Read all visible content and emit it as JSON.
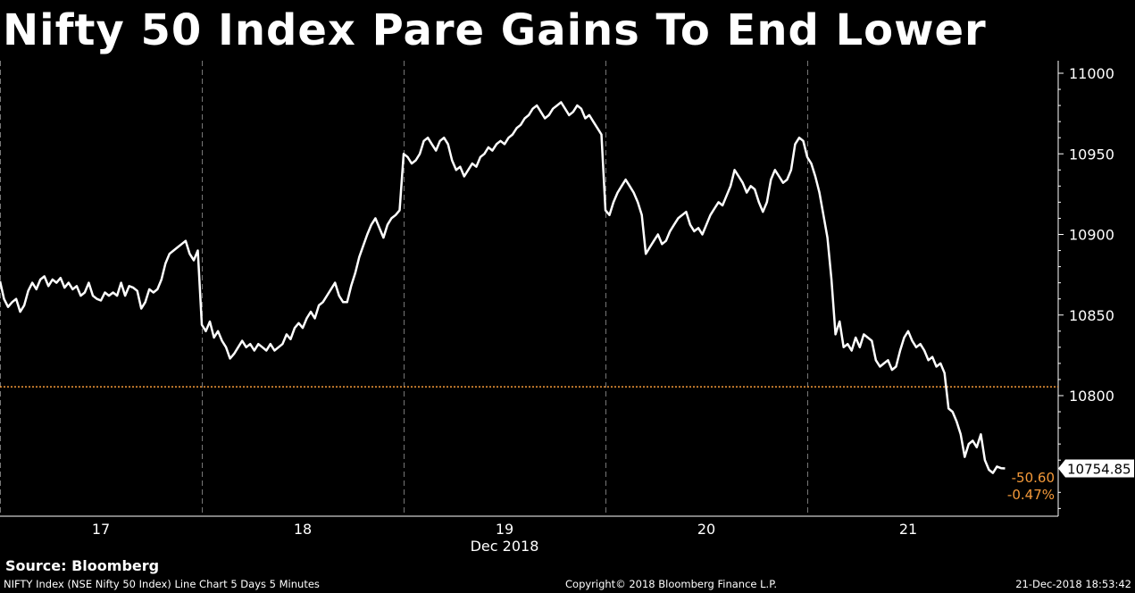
{
  "title": "Nifty 50 Index Pare Gains To End Lower",
  "source": "Source: Bloomberg",
  "footer": {
    "left": "NIFTY Index (NSE Nifty 50 Index) Line Chart 5 Days 5 Minutes",
    "center": "Copyright© 2018 Bloomberg Finance L.P.",
    "right": "21-Dec-2018 18:53:42"
  },
  "colors": {
    "background": "#000000",
    "line": "#ffffff",
    "reference_line": "#f59a3a",
    "change_text": "#f59a3a",
    "day_separator": "#777777"
  },
  "chart_data": {
    "type": "line",
    "series": [
      {
        "name": "NIFTY Index",
        "values_by_day": "see points"
      }
    ],
    "x_axis": {
      "type": "day-index",
      "tick_labels": [
        "17",
        "18",
        "19",
        "20",
        "21"
      ],
      "month_label": "Dec 2018",
      "xlim": [
        0,
        5.2
      ]
    },
    "y_axis": {
      "ylim": [
        10720,
        11005
      ],
      "ticks": [
        10800,
        10850,
        10900,
        10950,
        11000
      ],
      "position": "right"
    },
    "reference_line": {
      "value": 10805.45,
      "style": "dotted"
    },
    "last_value_label": "10754.85",
    "change_labels": {
      "absolute": "-50.60",
      "percent": "-0.47%"
    },
    "points": [
      [
        0.0,
        10871
      ],
      [
        0.02,
        10860
      ],
      [
        0.04,
        10855
      ],
      [
        0.06,
        10858
      ],
      [
        0.08,
        10860
      ],
      [
        0.1,
        10852
      ],
      [
        0.12,
        10856
      ],
      [
        0.14,
        10865
      ],
      [
        0.16,
        10870
      ],
      [
        0.18,
        10866
      ],
      [
        0.2,
        10872
      ],
      [
        0.22,
        10874
      ],
      [
        0.24,
        10868
      ],
      [
        0.26,
        10872
      ],
      [
        0.28,
        10870
      ],
      [
        0.3,
        10873
      ],
      [
        0.32,
        10867
      ],
      [
        0.34,
        10870
      ],
      [
        0.36,
        10866
      ],
      [
        0.38,
        10868
      ],
      [
        0.4,
        10862
      ],
      [
        0.42,
        10864
      ],
      [
        0.44,
        10870
      ],
      [
        0.46,
        10862
      ],
      [
        0.48,
        10860
      ],
      [
        0.5,
        10859
      ],
      [
        0.52,
        10864
      ],
      [
        0.54,
        10862
      ],
      [
        0.56,
        10864
      ],
      [
        0.58,
        10862
      ],
      [
        0.6,
        10870
      ],
      [
        0.62,
        10862
      ],
      [
        0.64,
        10868
      ],
      [
        0.66,
        10867
      ],
      [
        0.68,
        10865
      ],
      [
        0.7,
        10854
      ],
      [
        0.72,
        10858
      ],
      [
        0.74,
        10866
      ],
      [
        0.76,
        10864
      ],
      [
        0.78,
        10866
      ],
      [
        0.8,
        10872
      ],
      [
        0.82,
        10882
      ],
      [
        0.84,
        10888
      ],
      [
        0.86,
        10890
      ],
      [
        0.88,
        10892
      ],
      [
        0.9,
        10894
      ],
      [
        0.92,
        10896
      ],
      [
        0.94,
        10888
      ],
      [
        0.96,
        10884
      ],
      [
        0.98,
        10890
      ],
      [
        1.0,
        10844
      ],
      [
        1.02,
        10840
      ],
      [
        1.04,
        10846
      ],
      [
        1.06,
        10836
      ],
      [
        1.08,
        10840
      ],
      [
        1.1,
        10834
      ],
      [
        1.12,
        10830
      ],
      [
        1.14,
        10823
      ],
      [
        1.16,
        10826
      ],
      [
        1.18,
        10830
      ],
      [
        1.2,
        10834
      ],
      [
        1.22,
        10830
      ],
      [
        1.24,
        10832
      ],
      [
        1.26,
        10828
      ],
      [
        1.28,
        10832
      ],
      [
        1.3,
        10830
      ],
      [
        1.32,
        10828
      ],
      [
        1.34,
        10832
      ],
      [
        1.36,
        10828
      ],
      [
        1.38,
        10830
      ],
      [
        1.4,
        10832
      ],
      [
        1.42,
        10838
      ],
      [
        1.44,
        10835
      ],
      [
        1.46,
        10842
      ],
      [
        1.48,
        10845
      ],
      [
        1.5,
        10842
      ],
      [
        1.52,
        10848
      ],
      [
        1.54,
        10852
      ],
      [
        1.56,
        10848
      ],
      [
        1.58,
        10856
      ],
      [
        1.6,
        10858
      ],
      [
        1.62,
        10862
      ],
      [
        1.64,
        10866
      ],
      [
        1.66,
        10870
      ],
      [
        1.68,
        10862
      ],
      [
        1.7,
        10858
      ],
      [
        1.72,
        10858
      ],
      [
        1.74,
        10868
      ],
      [
        1.76,
        10876
      ],
      [
        1.78,
        10886
      ],
      [
        1.8,
        10893
      ],
      [
        1.82,
        10900
      ],
      [
        1.84,
        10906
      ],
      [
        1.86,
        10910
      ],
      [
        1.88,
        10904
      ],
      [
        1.9,
        10898
      ],
      [
        1.92,
        10906
      ],
      [
        1.94,
        10910
      ],
      [
        1.96,
        10912
      ],
      [
        1.98,
        10915
      ],
      [
        2.0,
        10950
      ],
      [
        2.02,
        10948
      ],
      [
        2.04,
        10944
      ],
      [
        2.06,
        10946
      ],
      [
        2.08,
        10950
      ],
      [
        2.1,
        10958
      ],
      [
        2.12,
        10960
      ],
      [
        2.14,
        10956
      ],
      [
        2.16,
        10952
      ],
      [
        2.18,
        10958
      ],
      [
        2.2,
        10960
      ],
      [
        2.22,
        10956
      ],
      [
        2.24,
        10946
      ],
      [
        2.26,
        10940
      ],
      [
        2.28,
        10942
      ],
      [
        2.3,
        10936
      ],
      [
        2.32,
        10940
      ],
      [
        2.34,
        10944
      ],
      [
        2.36,
        10942
      ],
      [
        2.38,
        10948
      ],
      [
        2.4,
        10950
      ],
      [
        2.42,
        10954
      ],
      [
        2.44,
        10952
      ],
      [
        2.46,
        10956
      ],
      [
        2.48,
        10958
      ],
      [
        2.5,
        10956
      ],
      [
        2.52,
        10960
      ],
      [
        2.54,
        10962
      ],
      [
        2.56,
        10966
      ],
      [
        2.58,
        10968
      ],
      [
        2.6,
        10972
      ],
      [
        2.62,
        10974
      ],
      [
        2.64,
        10978
      ],
      [
        2.66,
        10980
      ],
      [
        2.68,
        10976
      ],
      [
        2.7,
        10972
      ],
      [
        2.72,
        10974
      ],
      [
        2.74,
        10978
      ],
      [
        2.76,
        10980
      ],
      [
        2.78,
        10982
      ],
      [
        2.8,
        10978
      ],
      [
        2.82,
        10974
      ],
      [
        2.84,
        10976
      ],
      [
        2.86,
        10980
      ],
      [
        2.88,
        10978
      ],
      [
        2.9,
        10972
      ],
      [
        2.92,
        10974
      ],
      [
        2.94,
        10970
      ],
      [
        2.96,
        10966
      ],
      [
        2.98,
        10962
      ],
      [
        3.0,
        10915
      ],
      [
        3.02,
        10912
      ],
      [
        3.04,
        10920
      ],
      [
        3.06,
        10926
      ],
      [
        3.08,
        10930
      ],
      [
        3.1,
        10934
      ],
      [
        3.12,
        10930
      ],
      [
        3.14,
        10926
      ],
      [
        3.16,
        10920
      ],
      [
        3.18,
        10912
      ],
      [
        3.2,
        10888
      ],
      [
        3.22,
        10892
      ],
      [
        3.24,
        10896
      ],
      [
        3.26,
        10900
      ],
      [
        3.28,
        10894
      ],
      [
        3.3,
        10896
      ],
      [
        3.32,
        10902
      ],
      [
        3.34,
        10906
      ],
      [
        3.36,
        10910
      ],
      [
        3.38,
        10912
      ],
      [
        3.4,
        10914
      ],
      [
        3.42,
        10906
      ],
      [
        3.44,
        10902
      ],
      [
        3.46,
        10904
      ],
      [
        3.48,
        10900
      ],
      [
        3.5,
        10906
      ],
      [
        3.52,
        10912
      ],
      [
        3.54,
        10916
      ],
      [
        3.56,
        10920
      ],
      [
        3.58,
        10918
      ],
      [
        3.6,
        10924
      ],
      [
        3.62,
        10930
      ],
      [
        3.64,
        10940
      ],
      [
        3.66,
        10936
      ],
      [
        3.68,
        10932
      ],
      [
        3.7,
        10926
      ],
      [
        3.72,
        10930
      ],
      [
        3.74,
        10928
      ],
      [
        3.76,
        10920
      ],
      [
        3.78,
        10914
      ],
      [
        3.8,
        10920
      ],
      [
        3.82,
        10934
      ],
      [
        3.84,
        10940
      ],
      [
        3.86,
        10936
      ],
      [
        3.88,
        10932
      ],
      [
        3.9,
        10934
      ],
      [
        3.92,
        10940
      ],
      [
        3.94,
        10956
      ],
      [
        3.96,
        10960
      ],
      [
        3.98,
        10958
      ],
      [
        4.0,
        10948
      ],
      [
        4.02,
        10944
      ],
      [
        4.04,
        10936
      ],
      [
        4.06,
        10926
      ],
      [
        4.08,
        10912
      ],
      [
        4.1,
        10898
      ],
      [
        4.12,
        10872
      ],
      [
        4.14,
        10838
      ],
      [
        4.16,
        10846
      ],
      [
        4.18,
        10830
      ],
      [
        4.2,
        10832
      ],
      [
        4.22,
        10828
      ],
      [
        4.24,
        10836
      ],
      [
        4.26,
        10830
      ],
      [
        4.28,
        10838
      ],
      [
        4.3,
        10836
      ],
      [
        4.32,
        10834
      ],
      [
        4.34,
        10822
      ],
      [
        4.36,
        10818
      ],
      [
        4.38,
        10820
      ],
      [
        4.4,
        10822
      ],
      [
        4.42,
        10816
      ],
      [
        4.44,
        10818
      ],
      [
        4.46,
        10828
      ],
      [
        4.48,
        10836
      ],
      [
        4.5,
        10840
      ],
      [
        4.52,
        10834
      ],
      [
        4.54,
        10830
      ],
      [
        4.56,
        10832
      ],
      [
        4.58,
        10828
      ],
      [
        4.6,
        10822
      ],
      [
        4.62,
        10824
      ],
      [
        4.64,
        10818
      ],
      [
        4.66,
        10820
      ],
      [
        4.68,
        10814
      ],
      [
        4.7,
        10792
      ],
      [
        4.72,
        10790
      ],
      [
        4.74,
        10784
      ],
      [
        4.76,
        10776
      ],
      [
        4.78,
        10762
      ],
      [
        4.8,
        10770
      ],
      [
        4.82,
        10772
      ],
      [
        4.84,
        10768
      ],
      [
        4.86,
        10776
      ],
      [
        4.88,
        10760
      ],
      [
        4.9,
        10754
      ],
      [
        4.92,
        10752
      ],
      [
        4.94,
        10756
      ],
      [
        4.96,
        10755
      ],
      [
        4.98,
        10754.85
      ]
    ]
  }
}
